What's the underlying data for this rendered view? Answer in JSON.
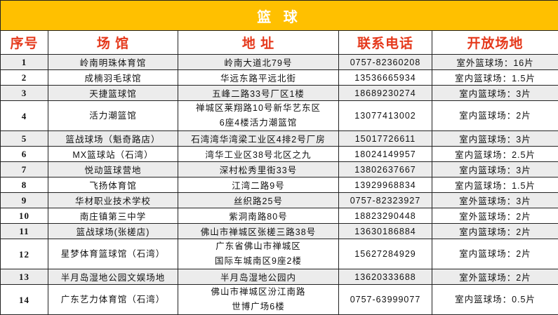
{
  "title": "篮 球",
  "headers": [
    "序号",
    "场 馆",
    "地 址",
    "联系电话",
    "开放场地"
  ],
  "rows": [
    {
      "no": "1",
      "venue": "岭南明珠体育馆",
      "address": [
        "岭南大道北79号"
      ],
      "phone": "0757-82360208",
      "courts": "室外篮球场：16片"
    },
    {
      "no": "2",
      "venue": "成楠羽毛球馆",
      "address": [
        "华远东路平远北街"
      ],
      "phone": "13536665934",
      "courts": "室内篮球场：1.5片"
    },
    {
      "no": "3",
      "venue": "天捷篮球馆",
      "address": [
        "五峰二路33号厂区1楼"
      ],
      "phone": "18689230274",
      "courts": "室内篮球场：3片"
    },
    {
      "no": "4",
      "venue": "活力潮篮馆",
      "address": [
        "禅城区莱翔路10号新华艺东区",
        "6座4楼活力潮篮馆"
      ],
      "phone": "13077413002",
      "courts": "室内篮球场：2片"
    },
    {
      "no": "5",
      "venue": "篮战球场（魁奇路店）",
      "address": [
        "石湾湾华湾梁工业区4排2号厂房"
      ],
      "phone": "15017726611",
      "courts": "室内篮球场：3片"
    },
    {
      "no": "6",
      "venue": "MX篮球站（石湾）",
      "address": [
        "湾华工业区38号北区之九"
      ],
      "phone": "18024149957",
      "courts": "室内篮球场：2.5片"
    },
    {
      "no": "7",
      "venue": "悦动篮球营地",
      "address": [
        "深村松秀里街33号"
      ],
      "phone": "13802637667",
      "courts": "室内篮球场：3片"
    },
    {
      "no": "8",
      "venue": "飞扬体育馆",
      "address": [
        "江湾二路9号"
      ],
      "phone": "13929968834",
      "courts": "室内篮球场：1.5片"
    },
    {
      "no": "9",
      "venue": "华材职业技术学校",
      "address": [
        "丝织路25号"
      ],
      "phone": "0757-82323927",
      "courts": "室外篮球场：3片"
    },
    {
      "no": "10",
      "venue": "南庄镇第三中学",
      "address": [
        "紫洞南路80号"
      ],
      "phone": "18823290448",
      "courts": "室外篮球场：2片"
    },
    {
      "no": "11",
      "venue": "篮战球场(张槎店)",
      "address": [
        "佛山市禅城区张槎三路38号"
      ],
      "phone": "13630186884",
      "courts": "室内篮球场：2片"
    },
    {
      "no": "12",
      "venue": "星梦体育篮球馆（石湾）",
      "address": [
        "广东省佛山市禅城区",
        "国际车城南区9座2楼"
      ],
      "phone": "15627284929",
      "courts": "室内篮球场：2片"
    },
    {
      "no": "13",
      "venue": "半月岛湿地公园文娱场地",
      "address": [
        "半月岛湿地公园内"
      ],
      "phone": "13620333688",
      "courts": "室外篮球场：2片"
    },
    {
      "no": "14",
      "venue": "广东艺力体育馆（石湾）",
      "address": [
        "佛山市禅城区汾江南路",
        "世博广场6楼"
      ],
      "phone": "0757-63999077",
      "courts": "室内篮球场：0.5片"
    }
  ]
}
